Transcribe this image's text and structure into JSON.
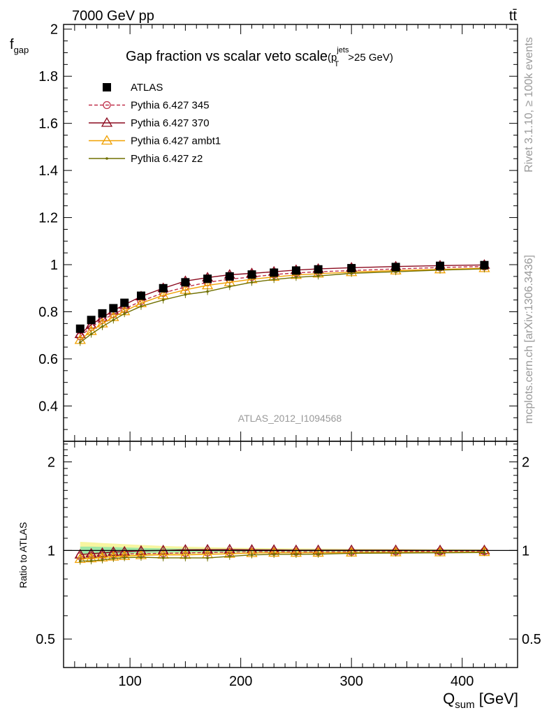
{
  "header": {
    "energy_label": "7000 GeV pp",
    "process_label": "tt̄"
  },
  "side_labels": {
    "rivet": "Rivet 3.1.10, ≥ 100k events",
    "source": "mcplots.cern.ch [arXiv:1306.3436]"
  },
  "chart_data": [
    {
      "type": "scatter",
      "title": "Gap fraction vs scalar veto scale",
      "title_suffix": {
        "open": "(p",
        "sup": "jets",
        "sub": "T",
        "close": ">25 GeV)"
      },
      "ylabel": {
        "main": "f",
        "sub": "gap"
      },
      "xlim": [
        40,
        450
      ],
      "ylim": [
        0.25,
        2.02
      ],
      "watermark": "ATLAS_2012_I1094568",
      "y_ticks": [
        "0.4",
        "0.6",
        "0.8",
        "1",
        "1.2",
        "1.4",
        "1.6",
        "1.8",
        "2"
      ],
      "x": [
        55,
        65,
        75,
        85,
        95,
        110,
        130,
        150,
        170,
        190,
        210,
        230,
        250,
        270,
        300,
        340,
        380,
        420
      ],
      "series": [
        {
          "name": "ATLAS",
          "marker": "square",
          "color": "#000000",
          "values": [
            0.728,
            0.765,
            0.793,
            0.815,
            0.838,
            0.868,
            0.9,
            0.925,
            0.94,
            0.95,
            0.958,
            0.966,
            0.975,
            0.98,
            0.985,
            0.99,
            0.995,
            0.998
          ]
        },
        {
          "name": "Pythia 6.427 345",
          "marker": "circle",
          "color": "#c0304a",
          "dash": true,
          "values": [
            0.695,
            0.735,
            0.765,
            0.79,
            0.812,
            0.845,
            0.88,
            0.905,
            0.925,
            0.938,
            0.948,
            0.958,
            0.965,
            0.97,
            0.975,
            0.982,
            0.988,
            0.992
          ]
        },
        {
          "name": "Pythia 6.427 370",
          "marker": "triangle",
          "color": "#8b0a1e",
          "values": [
            0.705,
            0.745,
            0.775,
            0.805,
            0.83,
            0.865,
            0.9,
            0.93,
            0.945,
            0.957,
            0.963,
            0.97,
            0.977,
            0.982,
            0.987,
            0.992,
            0.996,
            0.999
          ]
        },
        {
          "name": "Pythia 6.427 ambt1",
          "marker": "triangle",
          "color": "#f0a000",
          "values": [
            0.68,
            0.718,
            0.75,
            0.777,
            0.802,
            0.836,
            0.87,
            0.893,
            0.912,
            0.925,
            0.938,
            0.948,
            0.956,
            0.962,
            0.968,
            0.975,
            0.98,
            0.985
          ]
        },
        {
          "name": "Pythia 6.427 z2",
          "marker": "dot",
          "color": "#707000",
          "values": [
            0.67,
            0.705,
            0.737,
            0.765,
            0.792,
            0.823,
            0.85,
            0.873,
            0.886,
            0.907,
            0.925,
            0.937,
            0.946,
            0.952,
            0.963,
            0.97,
            0.977,
            0.982
          ]
        }
      ]
    },
    {
      "type": "scatter",
      "ylabel": "Ratio to ATLAS",
      "xlabel": {
        "main": "Q",
        "sub": "sum",
        "unit": " [GeV]"
      },
      "xlim": [
        40,
        450
      ],
      "log_y": true,
      "ylim": [
        0.4,
        2.35
      ],
      "y_ticks": [
        "0.5",
        "1",
        "2"
      ],
      "x_ticks": [
        "100",
        "200",
        "300",
        "400"
      ],
      "x": [
        55,
        65,
        75,
        85,
        95,
        110,
        130,
        150,
        170,
        190,
        210,
        230,
        250,
        270,
        300,
        340,
        380,
        420
      ],
      "band_inner": [
        0.03,
        0.03,
        0.028,
        0.026,
        0.024,
        0.02,
        0.016,
        0.014,
        0.012,
        0.011,
        0.01,
        0.009,
        0.008,
        0.008,
        0.007,
        0.006,
        0.006,
        0.005
      ],
      "band_outer": [
        0.07,
        0.065,
        0.06,
        0.055,
        0.05,
        0.044,
        0.036,
        0.03,
        0.026,
        0.022,
        0.02,
        0.018,
        0.016,
        0.015,
        0.013,
        0.011,
        0.01,
        0.009
      ],
      "series": [
        {
          "name": "Pythia 6.427 345",
          "marker": "circle",
          "color": "#c0304a",
          "dash": true,
          "values": [
            0.955,
            0.96,
            0.965,
            0.97,
            0.972,
            0.975,
            0.978,
            0.98,
            0.984,
            0.987,
            0.99,
            0.992,
            0.99,
            0.99,
            0.99,
            0.992,
            0.993,
            0.994
          ]
        },
        {
          "name": "Pythia 6.427 370",
          "marker": "triangle",
          "color": "#8b0a1e",
          "values": [
            0.968,
            0.975,
            0.98,
            0.988,
            0.99,
            0.997,
            1.0,
            1.005,
            1.006,
            1.007,
            1.005,
            1.004,
            1.002,
            1.002,
            1.002,
            1.002,
            1.001,
            1.001
          ]
        },
        {
          "name": "Pythia 6.427 ambt1",
          "marker": "triangle",
          "color": "#f0a000",
          "values": [
            0.935,
            0.94,
            0.946,
            0.953,
            0.957,
            0.963,
            0.967,
            0.966,
            0.97,
            0.974,
            0.979,
            0.982,
            0.981,
            0.982,
            0.983,
            0.985,
            0.985,
            0.987
          ]
        },
        {
          "name": "Pythia 6.427 z2",
          "marker": "dot",
          "color": "#707000",
          "values": [
            0.92,
            0.922,
            0.929,
            0.939,
            0.945,
            0.948,
            0.944,
            0.944,
            0.943,
            0.955,
            0.966,
            0.97,
            0.97,
            0.971,
            0.978,
            0.98,
            0.982,
            0.984
          ]
        }
      ]
    }
  ]
}
